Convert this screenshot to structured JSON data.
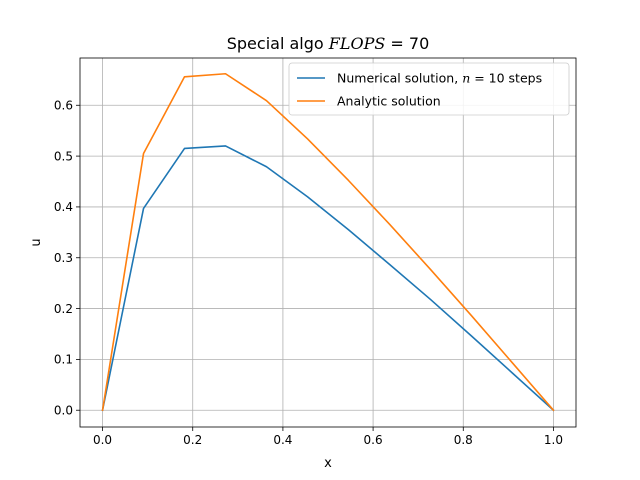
{
  "chart_data": {
    "type": "line",
    "title": "Special algo FLOPS = 70",
    "xlabel": "x",
    "ylabel": "u",
    "xlim": [
      -0.05,
      1.05
    ],
    "ylim": [
      -0.033,
      0.693
    ],
    "xticks": [
      0.0,
      0.2,
      0.4,
      0.6,
      0.8,
      1.0
    ],
    "xtick_labels": [
      "0.0",
      "0.2",
      "0.4",
      "0.6",
      "0.8",
      "1.0"
    ],
    "yticks": [
      0.0,
      0.1,
      0.2,
      0.3,
      0.4,
      0.5,
      0.6
    ],
    "ytick_labels": [
      "0.0",
      "0.1",
      "0.2",
      "0.3",
      "0.4",
      "0.5",
      "0.6"
    ],
    "grid": true,
    "legend_position": "top-right",
    "series": [
      {
        "name": "Numerical solution, n = 10 steps",
        "color": "#1f77b4",
        "x": [
          0.0,
          0.0909,
          0.1818,
          0.2727,
          0.3636,
          0.4545,
          0.5455,
          0.6364,
          0.7273,
          0.8182,
          0.9091,
          1.0
        ],
        "y": [
          0.0,
          0.397,
          0.515,
          0.52,
          0.479,
          0.42,
          0.355,
          0.287,
          0.218,
          0.146,
          0.073,
          0.0
        ]
      },
      {
        "name": "Analytic solution",
        "color": "#ff7f0e",
        "x": [
          0.0,
          0.0909,
          0.1818,
          0.2727,
          0.3636,
          0.4545,
          0.5455,
          0.6364,
          0.7273,
          0.8182,
          0.9091,
          1.0
        ],
        "y": [
          0.0,
          0.505,
          0.656,
          0.662,
          0.609,
          0.534,
          0.452,
          0.366,
          0.277,
          0.186,
          0.093,
          0.0
        ]
      }
    ]
  }
}
